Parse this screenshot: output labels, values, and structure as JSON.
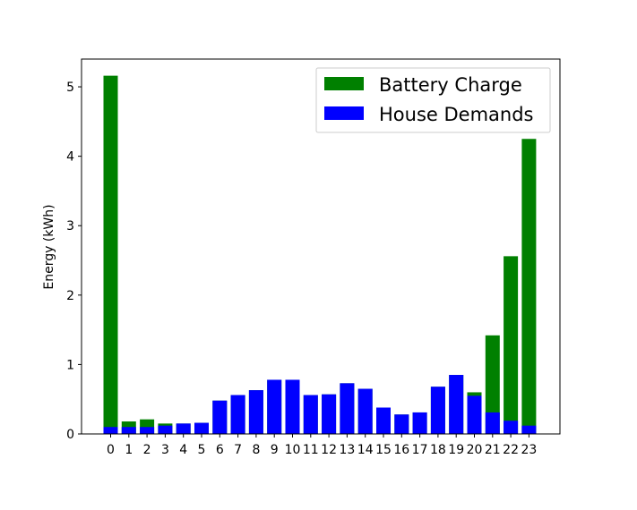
{
  "chart_data": {
    "type": "bar",
    "stacked": "overlaid",
    "categories": [
      "0",
      "1",
      "2",
      "3",
      "4",
      "5",
      "6",
      "7",
      "8",
      "9",
      "10",
      "11",
      "12",
      "13",
      "14",
      "15",
      "16",
      "17",
      "18",
      "19",
      "20",
      "21",
      "22",
      "23"
    ],
    "series": [
      {
        "name": "Battery Charge",
        "color": "#008000",
        "values": [
          5.16,
          0.18,
          0.21,
          0.15,
          0.15,
          0.16,
          0.48,
          0.56,
          0.63,
          0.78,
          0.78,
          0.56,
          0.57,
          0.73,
          0.65,
          0.38,
          0.28,
          0.31,
          0.68,
          0.85,
          0.6,
          1.42,
          2.56,
          4.25
        ]
      },
      {
        "name": "House Demands",
        "color": "#0000ff",
        "values": [
          0.1,
          0.1,
          0.1,
          0.12,
          0.15,
          0.16,
          0.48,
          0.56,
          0.63,
          0.78,
          0.78,
          0.56,
          0.57,
          0.73,
          0.65,
          0.38,
          0.28,
          0.31,
          0.68,
          0.85,
          0.55,
          0.31,
          0.19,
          0.12
        ]
      }
    ],
    "xlabel": "",
    "ylabel": "Energy (kWh)",
    "ylim": [
      0,
      5.4
    ],
    "yticks": [
      0,
      1,
      2,
      3,
      4,
      5
    ],
    "grid": false,
    "legend": "upper right"
  }
}
